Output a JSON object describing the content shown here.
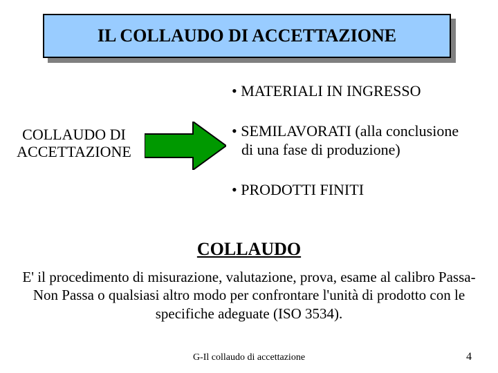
{
  "title": {
    "text": "IL COLLAUDO DI ACCETTAZIONE",
    "box_fill": "#99ccff",
    "box_border": "#000000",
    "shadow_color": "#808080",
    "fontsize": 26
  },
  "label": {
    "line1": "COLLAUDO DI",
    "line2": "ACCETTAZIONE",
    "fontsize": 22
  },
  "arrow": {
    "fill": "#009900",
    "stroke": "#000000",
    "width": 118,
    "height": 70
  },
  "bullets": {
    "fontsize": 22,
    "items": [
      {
        "dot": "•",
        "text": "MATERIALI IN INGRESSO"
      },
      {
        "dot": "•",
        "text": "SEMILAVORATI (alla conclusione",
        "cont": "di una fase di produzione)"
      },
      {
        "dot": "•",
        "text": "PRODOTTI FINITI"
      }
    ]
  },
  "heading2": "COLLAUDO",
  "paragraph": "E' il procedimento di misurazione, valutazione, prova, esame al calibro Passa-Non Passa o qualsiasi altro modo per confrontare l'unità di prodotto con le specifiche adeguate (ISO 3534).",
  "footer": {
    "center": "G-Il collaudo di accettazione",
    "page": "4"
  },
  "colors": {
    "background": "#ffffff",
    "text": "#000000"
  }
}
